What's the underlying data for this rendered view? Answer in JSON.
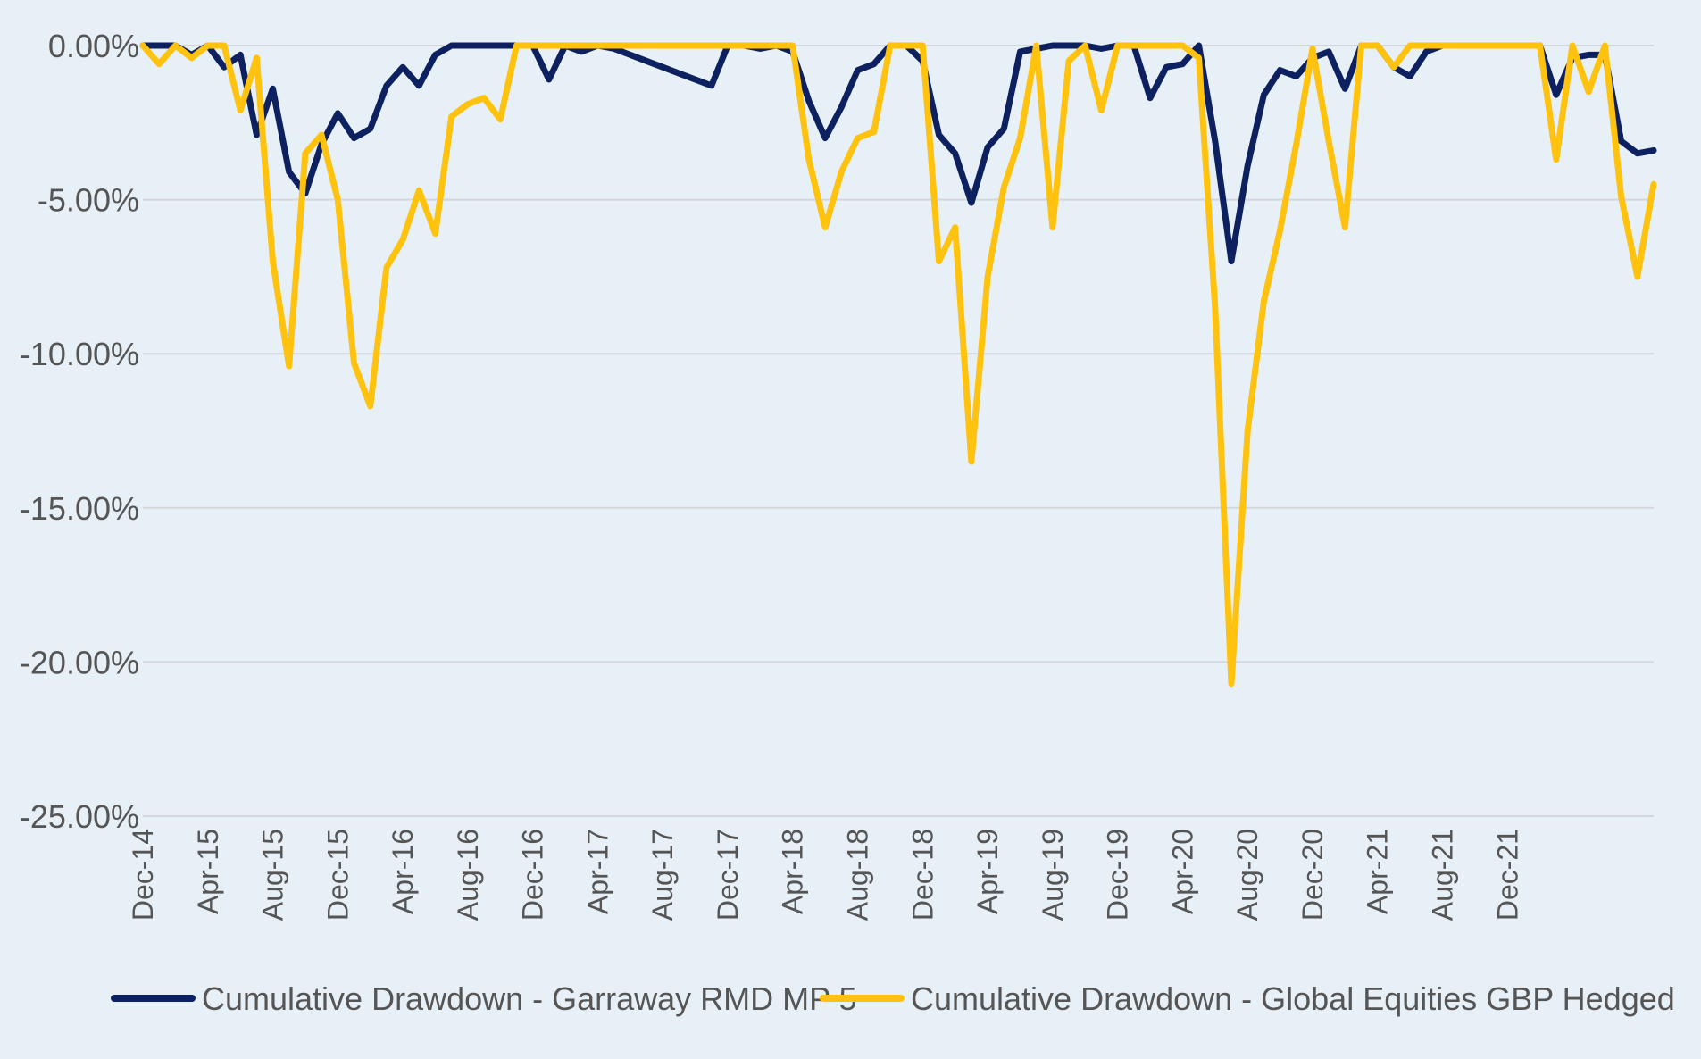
{
  "chart_data": {
    "type": "line",
    "title": "",
    "xlabel": "",
    "ylabel": "",
    "ylim": [
      -25,
      0
    ],
    "y_ticks": [
      0,
      -5,
      -10,
      -15,
      -20,
      -25
    ],
    "y_tick_labels": [
      "0.00%",
      "-5.00%",
      "-10.00%",
      "-15.00%",
      "-20.00%",
      "-25.00%"
    ],
    "x_tick_labels": [
      "Dec-14",
      "Apr-15",
      "Aug-15",
      "Dec-15",
      "Apr-16",
      "Aug-16",
      "Dec-16",
      "Apr-17",
      "Aug-17",
      "Dec-17",
      "Apr-18",
      "Aug-18",
      "Dec-18",
      "Apr-19",
      "Aug-19",
      "Dec-19",
      "Apr-20",
      "Aug-20",
      "Dec-20",
      "Apr-21",
      "Aug-21",
      "Dec-21"
    ],
    "x_tick_interval_months": 4,
    "grid": true,
    "legend_position": "bottom",
    "series": [
      {
        "name": "Cumulative Drawdown - Garraway RMD MP 5",
        "color": "#0d2160",
        "values": [
          0,
          0,
          0,
          -0.3,
          0,
          -0.7,
          -0.3,
          -2.9,
          -1.4,
          -4.1,
          -4.8,
          -3.2,
          -2.2,
          -3.0,
          -2.7,
          -1.3,
          -0.7,
          -1.3,
          -0.3,
          0,
          0,
          0,
          0,
          0,
          0,
          -1.1,
          0,
          -0.2,
          0,
          -0.1,
          -0.3,
          -0.5,
          -0.7,
          -0.9,
          -1.1,
          -1.3,
          0,
          0,
          -0.1,
          0,
          -0.2,
          -1.8,
          -3.0,
          -2.0,
          -0.8,
          -0.6,
          0,
          0,
          -0.5,
          -2.9,
          -3.5,
          -5.1,
          -3.3,
          -2.7,
          -0.2,
          -0.1,
          0,
          0,
          0,
          -0.1,
          0,
          0,
          -1.7,
          -0.7,
          -0.6,
          0,
          -3.1,
          -7.0,
          -3.9,
          -1.6,
          -0.8,
          -1.0,
          -0.4,
          -0.2,
          -1.4,
          0,
          0,
          -0.7,
          -1.0,
          -0.2,
          0,
          0,
          0,
          0,
          0,
          0,
          0,
          -1.6,
          -0.4,
          -0.3,
          -0.3,
          -3.1,
          -3.5,
          -3.4
        ]
      },
      {
        "name": "Cumulative Drawdown - Global Equities GBP Hedged",
        "color": "#ffc20e",
        "values": [
          0,
          -0.6,
          0,
          -0.4,
          0,
          0,
          -2.1,
          -0.4,
          -7.0,
          -10.4,
          -3.5,
          -2.9,
          -5.0,
          -10.3,
          -11.7,
          -7.2,
          -6.3,
          -4.7,
          -6.1,
          -2.3,
          -1.9,
          -1.7,
          -2.4,
          0,
          0,
          0,
          0,
          0,
          0,
          0,
          0,
          0,
          0,
          0,
          0,
          0,
          0,
          0,
          0,
          0,
          0,
          -3.7,
          -5.9,
          -4.1,
          -3.0,
          -2.8,
          0,
          0,
          0,
          -7.0,
          -5.9,
          -13.5,
          -7.5,
          -4.6,
          -3.0,
          0,
          -5.9,
          -0.5,
          0,
          -2.1,
          0,
          0,
          0,
          0,
          0,
          -0.4,
          -8.5,
          -20.7,
          -12.5,
          -8.3,
          -6.0,
          -3.2,
          -0.1,
          -3.1,
          -5.9,
          0,
          0,
          -0.7,
          0,
          0,
          0,
          0,
          0,
          0,
          0,
          0,
          0,
          -3.7,
          0,
          -1.5,
          0,
          -4.9,
          -7.5,
          -4.5
        ]
      }
    ]
  }
}
